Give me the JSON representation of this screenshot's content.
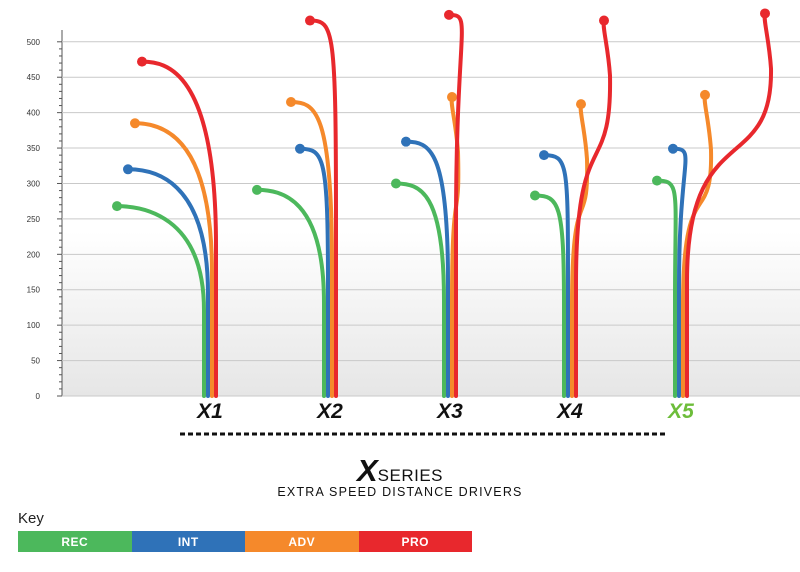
{
  "chart_data": {
    "type": "line",
    "y_ticks": [
      "0",
      "50",
      "100",
      "150",
      "200",
      "250",
      "300",
      "350",
      "400",
      "450",
      "500"
    ],
    "ylim": [
      0,
      550
    ],
    "grid": true,
    "categories": [
      {
        "label": "X1",
        "color": "#111111"
      },
      {
        "label": "X2",
        "color": "#111111"
      },
      {
        "label": "X3",
        "color": "#111111"
      },
      {
        "label": "X4",
        "color": "#111111"
      },
      {
        "label": "X5",
        "color": "#6dbd3a"
      }
    ],
    "series": [
      {
        "name": "REC",
        "color": "#4cb85c",
        "values": [
          268,
          291,
          300,
          283,
          304
        ]
      },
      {
        "name": "INT",
        "color": "#2f72b8",
        "values": [
          320,
          349,
          359,
          340,
          349
        ]
      },
      {
        "name": "ADV",
        "color": "#f5892b",
        "values": [
          385,
          415,
          422,
          412,
          425
        ]
      },
      {
        "name": "PRO",
        "color": "#e8282d",
        "values": [
          472,
          530,
          538,
          530,
          540
        ]
      }
    ]
  },
  "brand": {
    "logo_letter": "X",
    "logo_word": "SERIES",
    "subtitle": "EXTRA SPEED DISTANCE DRIVERS"
  },
  "key": {
    "title": "Key",
    "items": [
      {
        "label": "REC",
        "color": "#4cb85c"
      },
      {
        "label": "INT",
        "color": "#2f72b8"
      },
      {
        "label": "ADV",
        "color": "#f5892b"
      },
      {
        "label": "PRO",
        "color": "#e8282d"
      }
    ]
  }
}
